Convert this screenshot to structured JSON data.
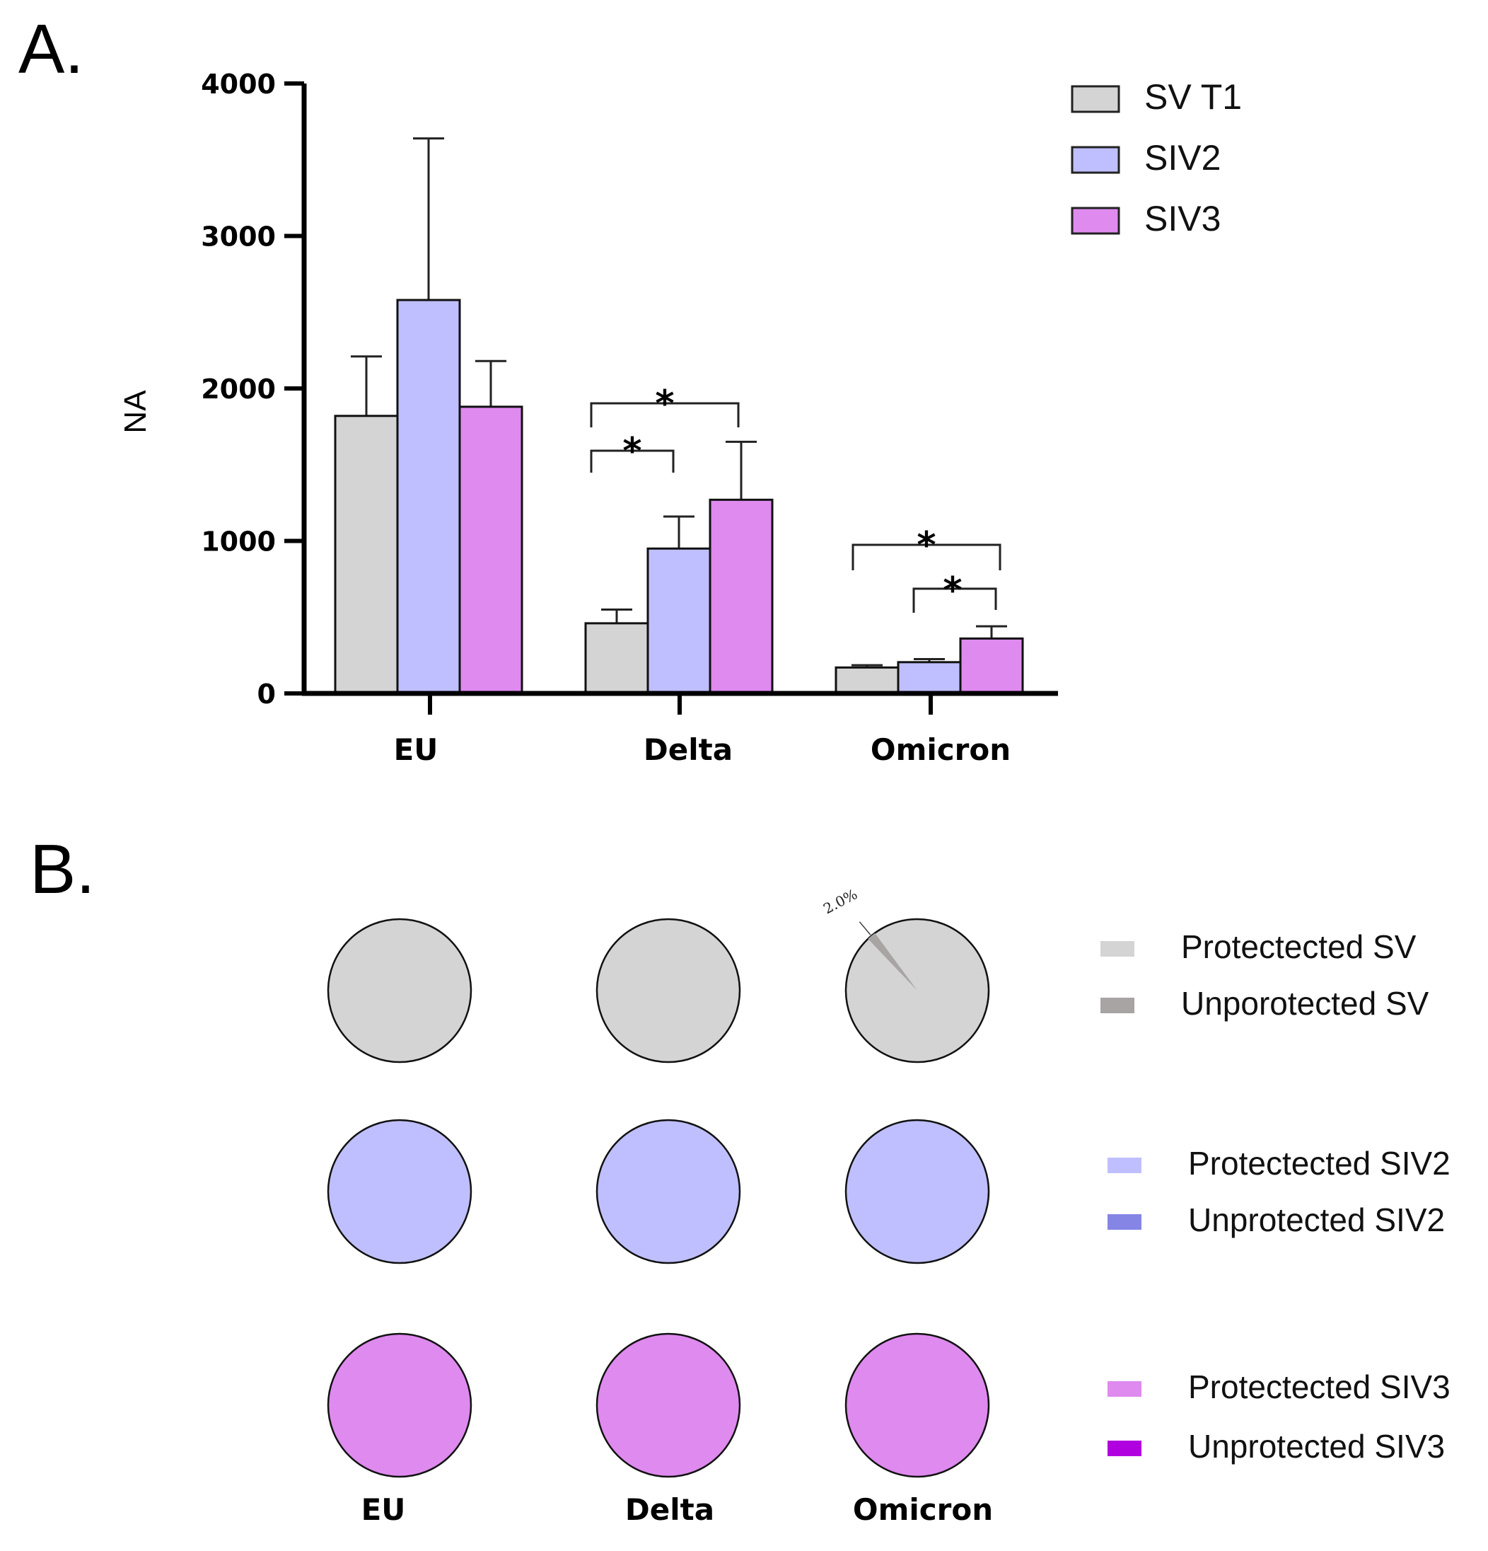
{
  "chart_data": [
    {
      "panel": "A.",
      "type": "bar",
      "xlabel": "",
      "ylabel": "NA",
      "ylim": [
        0,
        4000
      ],
      "yticks": [
        "0",
        "1000",
        "2000",
        "3000",
        "4000"
      ],
      "categories": [
        "EU",
        "Delta",
        "Omicron"
      ],
      "series": [
        {
          "name": "SV T1",
          "color": "#d4d4d4",
          "values": [
            1820,
            460,
            170
          ],
          "error_upper": [
            2210,
            550,
            185
          ]
        },
        {
          "name": "SIV2",
          "color": "#bfbfff",
          "values": [
            2580,
            950,
            205
          ],
          "error_upper": [
            3640,
            1160,
            225
          ]
        },
        {
          "name": "SIV3",
          "color": "#df8aef",
          "values": [
            1880,
            1270,
            360
          ],
          "error_upper": [
            2180,
            1650,
            440
          ]
        }
      ],
      "significance": [
        {
          "category": "Delta",
          "from": "SV T1",
          "to": "SIV2",
          "label": "*"
        },
        {
          "category": "Delta",
          "from": "SV T1",
          "to": "SIV3",
          "label": "*"
        },
        {
          "category": "Omicron",
          "from": "SV T1",
          "to": "SIV3",
          "label": "*"
        },
        {
          "category": "Omicron",
          "from": "SIV2",
          "to": "SIV3",
          "label": "*"
        }
      ],
      "legend_position": "top-right"
    },
    {
      "panel": "B.",
      "type": "pie",
      "columns": [
        "EU",
        "Delta",
        "Omicron"
      ],
      "rows": [
        {
          "group": "SV",
          "protected_color": "#d4d4d4",
          "unprotected_color": "#a8a4a4",
          "unprotected_pct": [
            0,
            0,
            2.0
          ]
        },
        {
          "group": "SIV2",
          "protected_color": "#bfbfff",
          "unprotected_color": "#8585e6",
          "unprotected_pct": [
            0,
            0,
            0
          ]
        },
        {
          "group": "SIV3",
          "protected_color": "#df8aef",
          "unprotected_color": "#b000e0",
          "unprotected_pct": [
            0,
            0,
            0
          ]
        }
      ],
      "slice_labels": [
        {
          "row": 0,
          "col": 2,
          "text": "2.0%"
        }
      ],
      "legend": [
        [
          "Protectected SV",
          "Unporotected SV"
        ],
        [
          "Protectected SIV2",
          "Unprotected SIV2"
        ],
        [
          "Protectected SIV3",
          "Unprotected SIV3"
        ]
      ]
    }
  ]
}
